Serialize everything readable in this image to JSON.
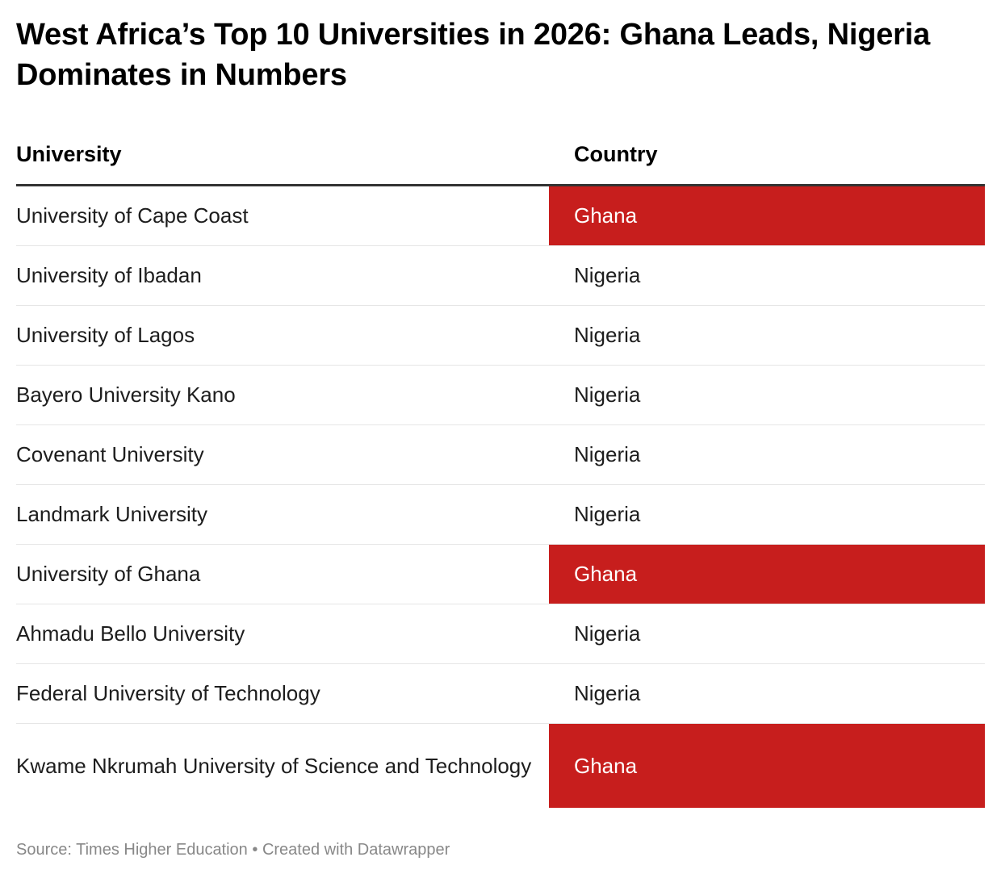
{
  "title": "West Africa’s Top 10 Universities in 2026: Ghana Leads, Nigeria Dominates in Numbers",
  "highlight_color": "#c71e1d",
  "chart_data": {
    "type": "table",
    "columns": [
      "University",
      "Country"
    ],
    "rows": [
      {
        "university": "University of Cape Coast",
        "country": "Ghana",
        "highlighted": true
      },
      {
        "university": "University of Ibadan",
        "country": "Nigeria",
        "highlighted": false
      },
      {
        "university": "University of Lagos",
        "country": "Nigeria",
        "highlighted": false
      },
      {
        "university": "Bayero University Kano",
        "country": "Nigeria",
        "highlighted": false
      },
      {
        "university": "Covenant University",
        "country": "Nigeria",
        "highlighted": false
      },
      {
        "university": "Landmark University",
        "country": "Nigeria",
        "highlighted": false
      },
      {
        "university": "University of Ghana",
        "country": "Ghana",
        "highlighted": true
      },
      {
        "university": "Ahmadu Bello University",
        "country": "Nigeria",
        "highlighted": false
      },
      {
        "university": "Federal University of Technology",
        "country": "Nigeria",
        "highlighted": false
      },
      {
        "university": "Kwame Nkrumah University of Science and Technology",
        "country": "Ghana",
        "highlighted": true
      }
    ]
  },
  "footer": {
    "source": "Source: Times Higher Education",
    "separator": "•",
    "credit": "Created with Datawrapper"
  }
}
